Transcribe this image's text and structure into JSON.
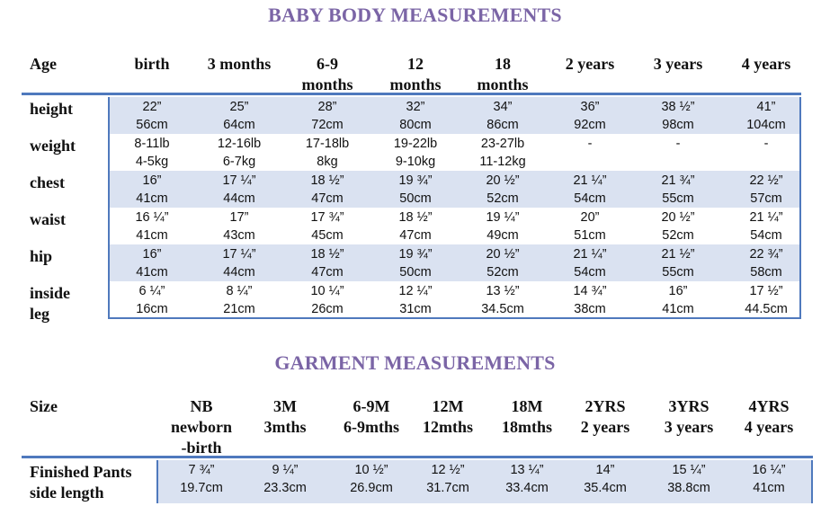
{
  "body": {
    "title": "BABY BODY MEASUREMENTS",
    "header_label": "Age",
    "columns": [
      {
        "l1": "birth",
        "l2": ""
      },
      {
        "l1": "3 months",
        "l2": ""
      },
      {
        "l1": "6-9",
        "l2": "months"
      },
      {
        "l1": "12",
        "l2": "months"
      },
      {
        "l1": "18",
        "l2": "months"
      },
      {
        "l1": "2 years",
        "l2": ""
      },
      {
        "l1": "3 years",
        "l2": ""
      },
      {
        "l1": "4 years",
        "l2": ""
      }
    ],
    "rows": [
      {
        "label1": "height",
        "label2": "",
        "cells": [
          [
            "22”",
            "56cm"
          ],
          [
            "25”",
            "64cm"
          ],
          [
            "28”",
            "72cm"
          ],
          [
            "32”",
            "80cm"
          ],
          [
            "34”",
            "86cm"
          ],
          [
            "36”",
            "92cm"
          ],
          [
            "38 ½”",
            "98cm"
          ],
          [
            "41”",
            "104cm"
          ]
        ]
      },
      {
        "label1": "weight",
        "label2": "",
        "cells": [
          [
            "8-11lb",
            "4-5kg"
          ],
          [
            "12-16lb",
            "6-7kg"
          ],
          [
            "17-18lb",
            "8kg"
          ],
          [
            "19-22lb",
            "9-10kg"
          ],
          [
            "23-27lb",
            "11-12kg"
          ],
          [
            "-",
            ""
          ],
          [
            "-",
            ""
          ],
          [
            "-",
            ""
          ]
        ]
      },
      {
        "label1": "chest",
        "label2": "",
        "cells": [
          [
            "16”",
            "41cm"
          ],
          [
            "17 ¼”",
            "44cm"
          ],
          [
            "18 ½”",
            "47cm"
          ],
          [
            "19 ¾”",
            "50cm"
          ],
          [
            "20 ½”",
            "52cm"
          ],
          [
            "21 ¼”",
            "54cm"
          ],
          [
            "21 ¾”",
            "55cm"
          ],
          [
            "22 ½”",
            "57cm"
          ]
        ]
      },
      {
        "label1": "waist",
        "label2": "",
        "cells": [
          [
            "16 ¼”",
            "41cm"
          ],
          [
            "17”",
            "43cm"
          ],
          [
            "17 ¾”",
            "45cm"
          ],
          [
            "18 ½”",
            "47cm"
          ],
          [
            "19 ¼”",
            "49cm"
          ],
          [
            "20”",
            "51cm"
          ],
          [
            "20 ½”",
            "52cm"
          ],
          [
            "21 ¼”",
            "54cm"
          ]
        ]
      },
      {
        "label1": "hip",
        "label2": "",
        "cells": [
          [
            "16”",
            "41cm"
          ],
          [
            "17 ¼”",
            "44cm"
          ],
          [
            "18 ½”",
            "47cm"
          ],
          [
            "19 ¾”",
            "50cm"
          ],
          [
            "20 ½”",
            "52cm"
          ],
          [
            "21 ¼”",
            "54cm"
          ],
          [
            "21 ½”",
            "55cm"
          ],
          [
            "22 ¾”",
            "58cm"
          ]
        ]
      },
      {
        "label1": "inside",
        "label2": "leg",
        "cells": [
          [
            "6 ¼”",
            "16cm"
          ],
          [
            "8 ¼”",
            "21cm"
          ],
          [
            "10 ¼”",
            "26cm"
          ],
          [
            "12 ¼”",
            "31cm"
          ],
          [
            "13 ½”",
            "34.5cm"
          ],
          [
            "14 ¾”",
            "38cm"
          ],
          [
            "16”",
            "41cm"
          ],
          [
            "17 ½”",
            "44.5cm"
          ]
        ]
      }
    ]
  },
  "garment": {
    "title": "GARMENT MEASUREMENTS",
    "header_label": "Size",
    "columns": [
      {
        "l1": "NB",
        "l2": "newborn",
        "l3": "-birth"
      },
      {
        "l1": "3M",
        "l2": "3mths",
        "l3": ""
      },
      {
        "l1": "6-9M",
        "l2": "6-9mths",
        "l3": ""
      },
      {
        "l1": "12M",
        "l2": "12mths",
        "l3": ""
      },
      {
        "l1": "18M",
        "l2": "18mths",
        "l3": ""
      },
      {
        "l1": "2YRS",
        "l2": "2 years",
        "l3": ""
      },
      {
        "l1": "3YRS",
        "l2": "3 years",
        "l3": ""
      },
      {
        "l1": "4YRS",
        "l2": "4 years",
        "l3": ""
      }
    ],
    "rows": [
      {
        "label1": "Finished Pants",
        "label2": "side length",
        "cells": [
          [
            "7 ¾”",
            "19.7cm"
          ],
          [
            "9 ¼”",
            "23.3cm"
          ],
          [
            "10 ½”",
            "26.9cm"
          ],
          [
            "12 ½”",
            "31.7cm"
          ],
          [
            "13 ¼”",
            "33.4cm"
          ],
          [
            "14”",
            "35.4cm"
          ],
          [
            "15 ¼”",
            "38.8cm"
          ],
          [
            "16 ¼”",
            "41cm"
          ]
        ]
      }
    ]
  },
  "colors": {
    "title": "#7b65a6",
    "rule": "#4f79bd",
    "band": "#dae2f1"
  }
}
